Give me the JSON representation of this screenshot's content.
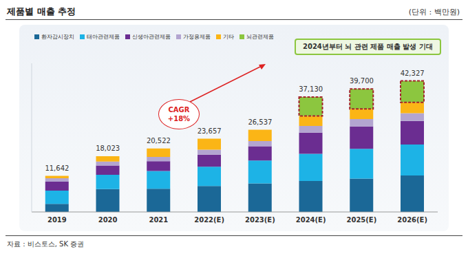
{
  "chart_data": {
    "type": "bar",
    "title": "제품별 매출 추정",
    "subtitle": "(단위 : 백만원)",
    "source": "자료 : 비스토스, SK 증권",
    "annotations": [
      "2024년부터 뇌 관련 제품 매출 발생 기대",
      "CAGR +18%"
    ],
    "categories": [
      "2019",
      "2020",
      "2021",
      "2022(E)",
      "2023(E)",
      "2024(E)",
      "2025(E)",
      "2026(E)"
    ],
    "series": [
      {
        "name": "환자감시장치",
        "color": "#1b6897",
        "values": [
          2600,
          7400,
          7500,
          8400,
          9200,
          10000,
          10800,
          11800
        ]
      },
      {
        "name": "태아관련제품",
        "color": "#1db3e6",
        "values": [
          4300,
          4600,
          5700,
          6200,
          7400,
          8800,
          9600,
          10000
        ]
      },
      {
        "name": "신생아관련제품",
        "color": "#6b2d91",
        "values": [
          2900,
          3000,
          3200,
          3900,
          4600,
          6800,
          7200,
          7600
        ]
      },
      {
        "name": "가정용제품",
        "color": "#b3a5d0",
        "values": [
          1100,
          1300,
          1400,
          1600,
          1700,
          2200,
          2400,
          2500
        ]
      },
      {
        "name": "기타",
        "color": "#fbb516",
        "values": [
          742,
          1723,
          2722,
          3557,
          3637,
          3200,
          3300,
          3500
        ]
      },
      {
        "name": "뇌관련제품",
        "color": "#8cc63f",
        "values": [
          null,
          null,
          null,
          null,
          null,
          6130,
          6400,
          6927
        ]
      }
    ],
    "totals": [
      11642,
      18023,
      20522,
      23657,
      26537,
      37130,
      39700,
      42327
    ],
    "total_labels": [
      "11,642",
      "18,023",
      "20,522",
      "23,657",
      "26,537",
      "37,130",
      "39,700",
      "42,327"
    ],
    "ylim": [
      0,
      48000
    ],
    "stacked": true,
    "grid": false,
    "legend": "top left",
    "tick_labels": "x"
  }
}
